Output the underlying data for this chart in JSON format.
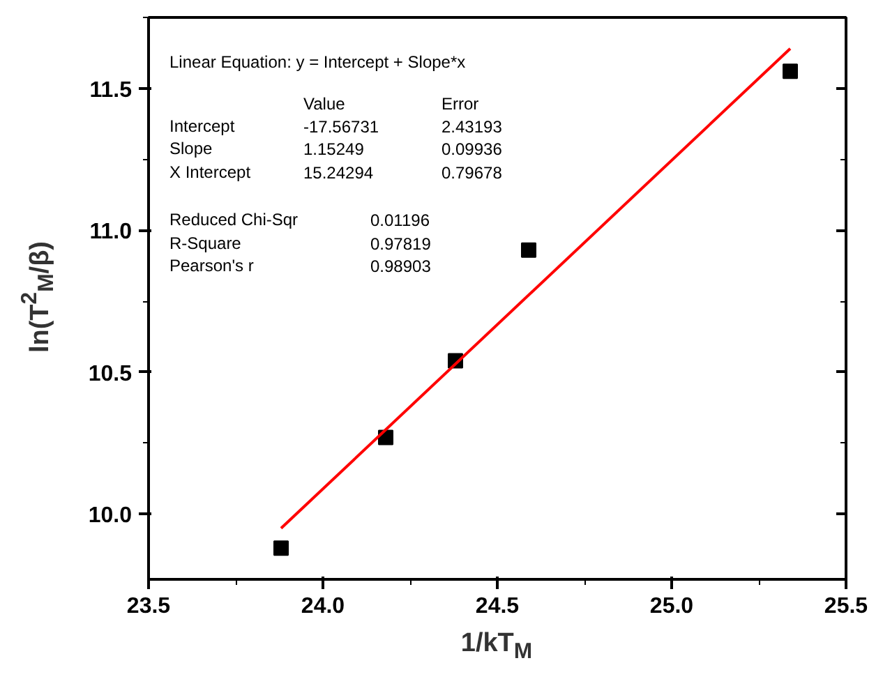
{
  "chart_data": {
    "type": "scatter",
    "xlabel": "1/kT$_{M}$",
    "ylabel": "ln(T$^{2}$$_{M}$/β)",
    "xlim": [
      23.5,
      25.5
    ],
    "ylim": [
      9.77,
      11.75
    ],
    "xticks": [
      23.5,
      {
        "value": 24,
        "label": "24.0"
      },
      24.5,
      {
        "value": 25,
        "label": "25.0"
      },
      25.5
    ],
    "yticks": [
      {
        "value": 10,
        "label": "10.0"
      },
      10.5,
      {
        "value": 11,
        "label": "11.0"
      },
      11.5
    ],
    "grid": false,
    "series": [
      {
        "marker": "square",
        "color": "#000000",
        "x": [
          23.88,
          24.18,
          24.38,
          24.59,
          25.34
        ],
        "values": [
          9.88,
          10.27,
          10.54,
          10.93,
          11.56
        ]
      },
      {
        "type": "line",
        "marker": "none",
        "color": "#ff0000",
        "x": [
          23.88,
          25.34
        ],
        "values": [
          9.95,
          11.64
        ]
      }
    ],
    "annotations": [
      "Linear Equation: y = Intercept + Slope*x",
      "Value",
      "Error",
      "Intercept",
      "-17.56731",
      "2.43193",
      "Slope",
      "1.15249",
      "0.09936",
      "X Intercept",
      "15.24294",
      "0.79678",
      "Reduced Chi-Sqr",
      "0.01196",
      "R-Square",
      "0.97819",
      "Pearson's r",
      "0.98903"
    ]
  }
}
